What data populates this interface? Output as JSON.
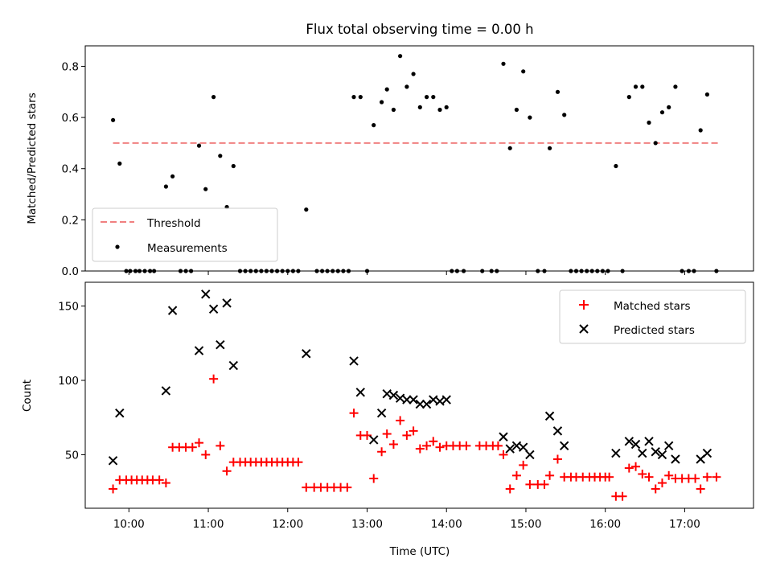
{
  "chart_data": [
    {
      "type": "scatter",
      "title": "Flux total observing time = 0.00 h",
      "xlabel": "",
      "ylabel": "Matched/Predicted stars",
      "ylim": [
        0,
        0.88
      ],
      "xlim": [
        "09:27",
        "17:52"
      ],
      "yticks": [
        {
          "value": 0.0,
          "label": "0.0"
        },
        {
          "value": 0.2,
          "label": "0.2"
        },
        {
          "value": 0.4,
          "label": "0.4"
        },
        {
          "value": 0.6,
          "label": "0.6"
        },
        {
          "value": 0.8,
          "label": "0.8"
        }
      ],
      "xtick_times": [
        "10:00",
        "11:00",
        "12:00",
        "13:00",
        "14:00",
        "15:00",
        "16:00",
        "17:00"
      ],
      "legend_position": "lower-left",
      "threshold": {
        "name": "Threshold",
        "value": 0.5,
        "x_start": "09:48",
        "x_end": "17:25",
        "color": "#f08080",
        "style": "dashed"
      },
      "series": [
        {
          "name": "Measurements",
          "color": "#000000",
          "marker": "dot",
          "points": [
            [
              "09:48",
              0.59
            ],
            [
              "09:53",
              0.42
            ],
            [
              "09:58",
              0.0
            ],
            [
              "10:01",
              0.0
            ],
            [
              "10:05",
              0.0
            ],
            [
              "10:08",
              0.0
            ],
            [
              "10:12",
              0.0
            ],
            [
              "10:16",
              0.0
            ],
            [
              "10:19",
              0.0
            ],
            [
              "10:28",
              0.33
            ],
            [
              "10:33",
              0.37
            ],
            [
              "10:39",
              0.0
            ],
            [
              "10:43",
              0.0
            ],
            [
              "10:47",
              0.0
            ],
            [
              "10:53",
              0.49
            ],
            [
              "10:58",
              0.32
            ],
            [
              "11:04",
              0.68
            ],
            [
              "11:09",
              0.45
            ],
            [
              "11:14",
              0.25
            ],
            [
              "11:19",
              0.41
            ],
            [
              "11:24",
              0.0
            ],
            [
              "11:28",
              0.0
            ],
            [
              "11:32",
              0.0
            ],
            [
              "11:36",
              0.0
            ],
            [
              "11:40",
              0.0
            ],
            [
              "11:44",
              0.0
            ],
            [
              "11:48",
              0.0
            ],
            [
              "11:52",
              0.0
            ],
            [
              "11:56",
              0.0
            ],
            [
              "12:00",
              0.0
            ],
            [
              "12:04",
              0.0
            ],
            [
              "12:08",
              0.0
            ],
            [
              "12:14",
              0.24
            ],
            [
              "12:22",
              0.0
            ],
            [
              "12:26",
              0.0
            ],
            [
              "12:30",
              0.0
            ],
            [
              "12:34",
              0.0
            ],
            [
              "12:38",
              0.0
            ],
            [
              "12:42",
              0.0
            ],
            [
              "12:46",
              0.0
            ],
            [
              "12:50",
              0.68
            ],
            [
              "12:55",
              0.68
            ],
            [
              "13:00",
              0.0
            ],
            [
              "13:05",
              0.57
            ],
            [
              "13:11",
              0.66
            ],
            [
              "13:15",
              0.71
            ],
            [
              "13:20",
              0.63
            ],
            [
              "13:25",
              0.84
            ],
            [
              "13:30",
              0.72
            ],
            [
              "13:35",
              0.77
            ],
            [
              "13:40",
              0.64
            ],
            [
              "13:45",
              0.68
            ],
            [
              "13:50",
              0.68
            ],
            [
              "13:55",
              0.63
            ],
            [
              "14:00",
              0.64
            ],
            [
              "14:04",
              0.0
            ],
            [
              "14:08",
              0.0
            ],
            [
              "14:13",
              0.0
            ],
            [
              "14:27",
              0.0
            ],
            [
              "14:34",
              0.0
            ],
            [
              "14:38",
              0.0
            ],
            [
              "14:43",
              0.81
            ],
            [
              "14:48",
              0.48
            ],
            [
              "14:53",
              0.63
            ],
            [
              "14:58",
              0.78
            ],
            [
              "15:03",
              0.6
            ],
            [
              "15:09",
              0.0
            ],
            [
              "15:14",
              0.0
            ],
            [
              "15:18",
              0.48
            ],
            [
              "15:24",
              0.7
            ],
            [
              "15:29",
              0.61
            ],
            [
              "15:34",
              0.0
            ],
            [
              "15:38",
              0.0
            ],
            [
              "15:42",
              0.0
            ],
            [
              "15:46",
              0.0
            ],
            [
              "15:50",
              0.0
            ],
            [
              "15:54",
              0.0
            ],
            [
              "15:58",
              0.0
            ],
            [
              "16:02",
              0.0
            ],
            [
              "16:08",
              0.41
            ],
            [
              "16:13",
              0.0
            ],
            [
              "16:18",
              0.68
            ],
            [
              "16:23",
              0.72
            ],
            [
              "16:28",
              0.72
            ],
            [
              "16:33",
              0.58
            ],
            [
              "16:38",
              0.5
            ],
            [
              "16:43",
              0.62
            ],
            [
              "16:48",
              0.64
            ],
            [
              "16:53",
              0.72
            ],
            [
              "16:58",
              0.0
            ],
            [
              "17:03",
              0.0
            ],
            [
              "17:07",
              0.0
            ],
            [
              "17:12",
              0.55
            ],
            [
              "17:17",
              0.69
            ],
            [
              "17:24",
              0.0
            ]
          ]
        }
      ]
    },
    {
      "type": "scatter",
      "title": "",
      "xlabel": "Time (UTC)",
      "ylabel": "Count",
      "ylim": [
        14,
        166
      ],
      "xlim": [
        "09:27",
        "17:52"
      ],
      "yticks": [
        {
          "value": 50,
          "label": "50"
        },
        {
          "value": 100,
          "label": "100"
        },
        {
          "value": 150,
          "label": "150"
        }
      ],
      "xticks": [
        {
          "time": "10:00",
          "label": "10:00"
        },
        {
          "time": "11:00",
          "label": "11:00"
        },
        {
          "time": "12:00",
          "label": "12:00"
        },
        {
          "time": "13:00",
          "label": "13:00"
        },
        {
          "time": "14:00",
          "label": "14:00"
        },
        {
          "time": "15:00",
          "label": "15:00"
        },
        {
          "time": "16:00",
          "label": "16:00"
        },
        {
          "time": "17:00",
          "label": "17:00"
        }
      ],
      "legend_position": "upper-right",
      "series": [
        {
          "name": "Matched stars",
          "color": "#ff0000",
          "marker": "plus",
          "points": [
            [
              "09:48",
              27
            ],
            [
              "09:53",
              33
            ],
            [
              "09:58",
              33
            ],
            [
              "10:02",
              33
            ],
            [
              "10:06",
              33
            ],
            [
              "10:10",
              33
            ],
            [
              "10:14",
              33
            ],
            [
              "10:18",
              33
            ],
            [
              "10:23",
              33
            ],
            [
              "10:28",
              31
            ],
            [
              "10:33",
              55
            ],
            [
              "10:38",
              55
            ],
            [
              "10:43",
              55
            ],
            [
              "10:48",
              55
            ],
            [
              "10:53",
              58
            ],
            [
              "10:58",
              50
            ],
            [
              "11:04",
              101
            ],
            [
              "11:09",
              56
            ],
            [
              "11:14",
              39
            ],
            [
              "11:19",
              45
            ],
            [
              "11:24",
              45
            ],
            [
              "11:28",
              45
            ],
            [
              "11:32",
              45
            ],
            [
              "11:36",
              45
            ],
            [
              "11:40",
              45
            ],
            [
              "11:44",
              45
            ],
            [
              "11:48",
              45
            ],
            [
              "11:52",
              45
            ],
            [
              "11:56",
              45
            ],
            [
              "12:00",
              45
            ],
            [
              "12:04",
              45
            ],
            [
              "12:08",
              45
            ],
            [
              "12:14",
              28
            ],
            [
              "12:20",
              28
            ],
            [
              "12:25",
              28
            ],
            [
              "12:30",
              28
            ],
            [
              "12:35",
              28
            ],
            [
              "12:40",
              28
            ],
            [
              "12:45",
              28
            ],
            [
              "12:50",
              78
            ],
            [
              "12:55",
              63
            ],
            [
              "13:00",
              63
            ],
            [
              "13:05",
              34
            ],
            [
              "13:11",
              52
            ],
            [
              "13:15",
              64
            ],
            [
              "13:20",
              57
            ],
            [
              "13:25",
              73
            ],
            [
              "13:30",
              63
            ],
            [
              "13:35",
              66
            ],
            [
              "13:40",
              54
            ],
            [
              "13:45",
              56
            ],
            [
              "13:50",
              59
            ],
            [
              "13:55",
              55
            ],
            [
              "14:00",
              56
            ],
            [
              "14:05",
              56
            ],
            [
              "14:10",
              56
            ],
            [
              "14:15",
              56
            ],
            [
              "14:25",
              56
            ],
            [
              "14:30",
              56
            ],
            [
              "14:35",
              56
            ],
            [
              "14:39",
              56
            ],
            [
              "14:43",
              50
            ],
            [
              "14:48",
              27
            ],
            [
              "14:53",
              36
            ],
            [
              "14:58",
              43
            ],
            [
              "15:03",
              30
            ],
            [
              "15:09",
              30
            ],
            [
              "15:14",
              30
            ],
            [
              "15:18",
              36
            ],
            [
              "15:24",
              47
            ],
            [
              "15:29",
              35
            ],
            [
              "15:34",
              35
            ],
            [
              "15:38",
              35
            ],
            [
              "15:43",
              35
            ],
            [
              "15:48",
              35
            ],
            [
              "15:52",
              35
            ],
            [
              "15:56",
              35
            ],
            [
              "16:00",
              35
            ],
            [
              "16:03",
              35
            ],
            [
              "16:08",
              22
            ],
            [
              "16:13",
              22
            ],
            [
              "16:18",
              41
            ],
            [
              "16:23",
              42
            ],
            [
              "16:28",
              37
            ],
            [
              "16:33",
              35
            ],
            [
              "16:38",
              27
            ],
            [
              "16:43",
              31
            ],
            [
              "16:48",
              36
            ],
            [
              "16:53",
              34
            ],
            [
              "16:58",
              34
            ],
            [
              "17:03",
              34
            ],
            [
              "17:08",
              34
            ],
            [
              "17:12",
              27
            ],
            [
              "17:17",
              35
            ],
            [
              "17:24",
              35
            ]
          ]
        },
        {
          "name": "Predicted stars",
          "color": "#000000",
          "marker": "x",
          "points": [
            [
              "09:48",
              46
            ],
            [
              "09:53",
              78
            ],
            [
              "10:28",
              93
            ],
            [
              "10:33",
              147
            ],
            [
              "10:53",
              120
            ],
            [
              "10:58",
              158
            ],
            [
              "11:04",
              148
            ],
            [
              "11:09",
              124
            ],
            [
              "11:14",
              152
            ],
            [
              "11:19",
              110
            ],
            [
              "12:14",
              118
            ],
            [
              "12:50",
              113
            ],
            [
              "12:55",
              92
            ],
            [
              "13:05",
              60
            ],
            [
              "13:11",
              78
            ],
            [
              "13:15",
              91
            ],
            [
              "13:20",
              90
            ],
            [
              "13:25",
              88
            ],
            [
              "13:30",
              87
            ],
            [
              "13:35",
              87
            ],
            [
              "13:40",
              84
            ],
            [
              "13:45",
              84
            ],
            [
              "13:50",
              87
            ],
            [
              "13:55",
              86
            ],
            [
              "14:00",
              87
            ],
            [
              "14:43",
              62
            ],
            [
              "14:48",
              54
            ],
            [
              "14:53",
              56
            ],
            [
              "14:58",
              55
            ],
            [
              "15:03",
              50
            ],
            [
              "15:18",
              76
            ],
            [
              "15:24",
              66
            ],
            [
              "15:29",
              56
            ],
            [
              "16:08",
              51
            ],
            [
              "16:18",
              59
            ],
            [
              "16:23",
              57
            ],
            [
              "16:28",
              51
            ],
            [
              "16:33",
              59
            ],
            [
              "16:38",
              52
            ],
            [
              "16:43",
              50
            ],
            [
              "16:48",
              56
            ],
            [
              "16:53",
              47
            ],
            [
              "17:12",
              47
            ],
            [
              "17:17",
              51
            ]
          ]
        }
      ]
    }
  ]
}
